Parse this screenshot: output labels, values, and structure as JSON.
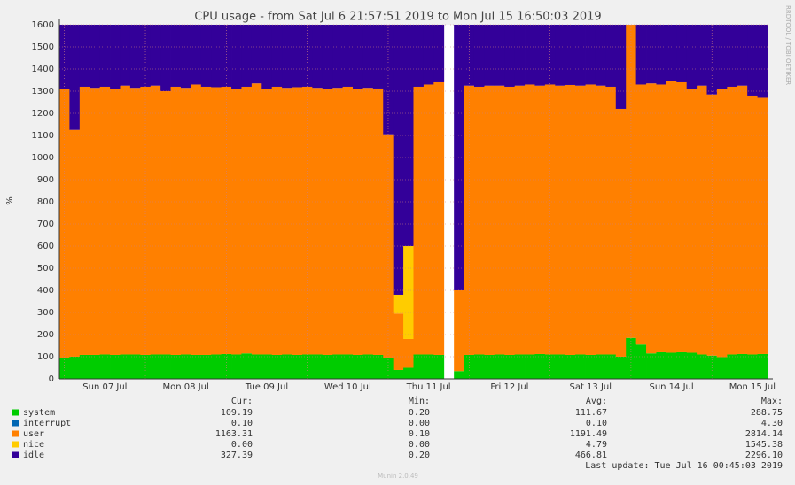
{
  "chart_data": {
    "type": "area",
    "stacked": true,
    "title": "CPU usage - from Sat Jul  6 21:57:51 2019 to Mon Jul 15 16:50:03 2019",
    "y_label": "%",
    "watermark": "RRDTOOL / TOBI OETIKER",
    "ylim": [
      0,
      1600
    ],
    "yticks": [
      0,
      100,
      200,
      300,
      400,
      500,
      600,
      700,
      800,
      900,
      1000,
      1100,
      1200,
      1300,
      1400,
      1500,
      1600
    ],
    "grid": true,
    "categories": [
      null,
      null,
      null,
      null,
      "Sun 07 Jul",
      null,
      null,
      null,
      null,
      null,
      null,
      null,
      "Mon 08 Jul",
      null,
      null,
      null,
      null,
      null,
      null,
      null,
      "Tue 09 Jul",
      null,
      null,
      null,
      null,
      null,
      null,
      null,
      "Wed 10 Jul",
      null,
      null,
      null,
      null,
      null,
      null,
      null,
      "Thu 11 Jul",
      null,
      null,
      null,
      null,
      null,
      null,
      null,
      "Fri 12 Jul",
      null,
      null,
      null,
      null,
      null,
      null,
      null,
      "Sat 13 Jul",
      null,
      null,
      null,
      null,
      null,
      null,
      null,
      "Sun 14 Jul",
      null,
      null,
      null,
      null,
      null,
      null,
      null,
      "Mon 15 Jul",
      null
    ],
    "stats_columns": [
      "Cur:",
      "Min:",
      "Avg:",
      "Max:"
    ],
    "series": [
      {
        "name": "system",
        "color": "#00cc00",
        "stats": [
          "109.19",
          "0.20",
          "111.67",
          "288.75"
        ],
        "values": [
          95,
          100,
          108,
          108,
          110,
          108,
          110,
          110,
          108,
          110,
          110,
          108,
          110,
          108,
          108,
          110,
          112,
          110,
          115,
          110,
          110,
          108,
          110,
          108,
          110,
          110,
          108,
          110,
          110,
          108,
          110,
          108,
          95,
          40,
          50,
          110,
          110,
          108,
          null,
          35,
          108,
          110,
          108,
          110,
          108,
          110,
          110,
          112,
          110,
          110,
          108,
          110,
          108,
          110,
          110,
          100,
          185,
          155,
          115,
          120,
          118,
          120,
          118,
          110,
          105,
          98,
          110,
          112,
          110,
          112
        ]
      },
      {
        "name": "interrupt",
        "color": "#0066b3",
        "stats": [
          "0.10",
          "0.00",
          "0.10",
          "4.30"
        ],
        "values": [
          0.1,
          0.1,
          0.1,
          0.1,
          0.1,
          0.1,
          0.1,
          0.1,
          0.1,
          0.1,
          0.1,
          0.1,
          0.1,
          0.1,
          0.1,
          0.1,
          0.1,
          0.1,
          0.1,
          0.1,
          0.1,
          0.1,
          0.1,
          0.1,
          0.1,
          0.1,
          0.1,
          0.1,
          0.1,
          0.1,
          0.1,
          0.1,
          0.1,
          0.1,
          0.1,
          0.1,
          0.1,
          0.1,
          null,
          0.1,
          0.1,
          0.1,
          0.1,
          0.1,
          0.1,
          0.1,
          0.1,
          0.1,
          0.1,
          0.1,
          0.1,
          0.1,
          0.1,
          0.1,
          0.1,
          0.1,
          0.1,
          0.1,
          0.1,
          0.1,
          0.1,
          0.1,
          0.1,
          0.1,
          0.1,
          0.1,
          0.1,
          0.1,
          0.1,
          0.1
        ]
      },
      {
        "name": "user",
        "color": "#ff8000",
        "stats": [
          "1163.31",
          "0.10",
          "1191.49",
          "2814.14"
        ],
        "values": [
          1215,
          1025,
          1212,
          1207,
          1210,
          1202,
          1215,
          1205,
          1212,
          1215,
          1190,
          1212,
          1205,
          1222,
          1212,
          1208,
          1208,
          1200,
          1205,
          1225,
          1200,
          1212,
          1205,
          1210,
          1210,
          1205,
          1202,
          1205,
          1210,
          1202,
          1205,
          1204,
          1010,
          255,
          130,
          1210,
          1220,
          1232,
          null,
          365,
          1217,
          1210,
          1217,
          1215,
          1212,
          1215,
          1220,
          1213,
          1220,
          1215,
          1220,
          1215,
          1222,
          1215,
          1210,
          1120,
          1415,
          1175,
          1220,
          1210,
          1227,
          1220,
          1192,
          1215,
          1180,
          1212,
          1210,
          1213,
          1170,
          1158
        ]
      },
      {
        "name": "nice",
        "color": "#ffcc00",
        "stats": [
          "0.00",
          "0.00",
          "4.79",
          "1545.38"
        ],
        "values": [
          0,
          0,
          0,
          0,
          0,
          0,
          0,
          0,
          0,
          0,
          0,
          0,
          0,
          0,
          0,
          0,
          0,
          0,
          0,
          0,
          0,
          0,
          0,
          0,
          0,
          0,
          0,
          0,
          0,
          0,
          0,
          0,
          0,
          85,
          420,
          0,
          0,
          0,
          null,
          0,
          0,
          0,
          0,
          0,
          0,
          0,
          0,
          0,
          0,
          0,
          0,
          0,
          0,
          0,
          0,
          0,
          0,
          0,
          0,
          0,
          0,
          0,
          0,
          0,
          0,
          0,
          0,
          0,
          0,
          0
        ]
      },
      {
        "name": "idle",
        "color": "#330099",
        "stats": [
          "327.39",
          "0.20",
          "466.81",
          "2296.10"
        ],
        "values": [
          290,
          475,
          280,
          285,
          280,
          290,
          275,
          285,
          280,
          275,
          300,
          280,
          285,
          270,
          280,
          282,
          280,
          290,
          280,
          265,
          290,
          280,
          285,
          282,
          280,
          285,
          290,
          285,
          280,
          290,
          285,
          288,
          495,
          1220,
          1000,
          280,
          270,
          260,
          null,
          1200,
          275,
          280,
          275,
          275,
          280,
          275,
          270,
          275,
          270,
          275,
          272,
          275,
          270,
          275,
          280,
          380,
          0,
          270,
          265,
          270,
          255,
          260,
          290,
          275,
          315,
          290,
          280,
          275,
          320,
          330
        ]
      }
    ],
    "last_update": "Last update: Tue Jul 16 00:45:03 2019",
    "credit": "Munin 2.0.49"
  }
}
